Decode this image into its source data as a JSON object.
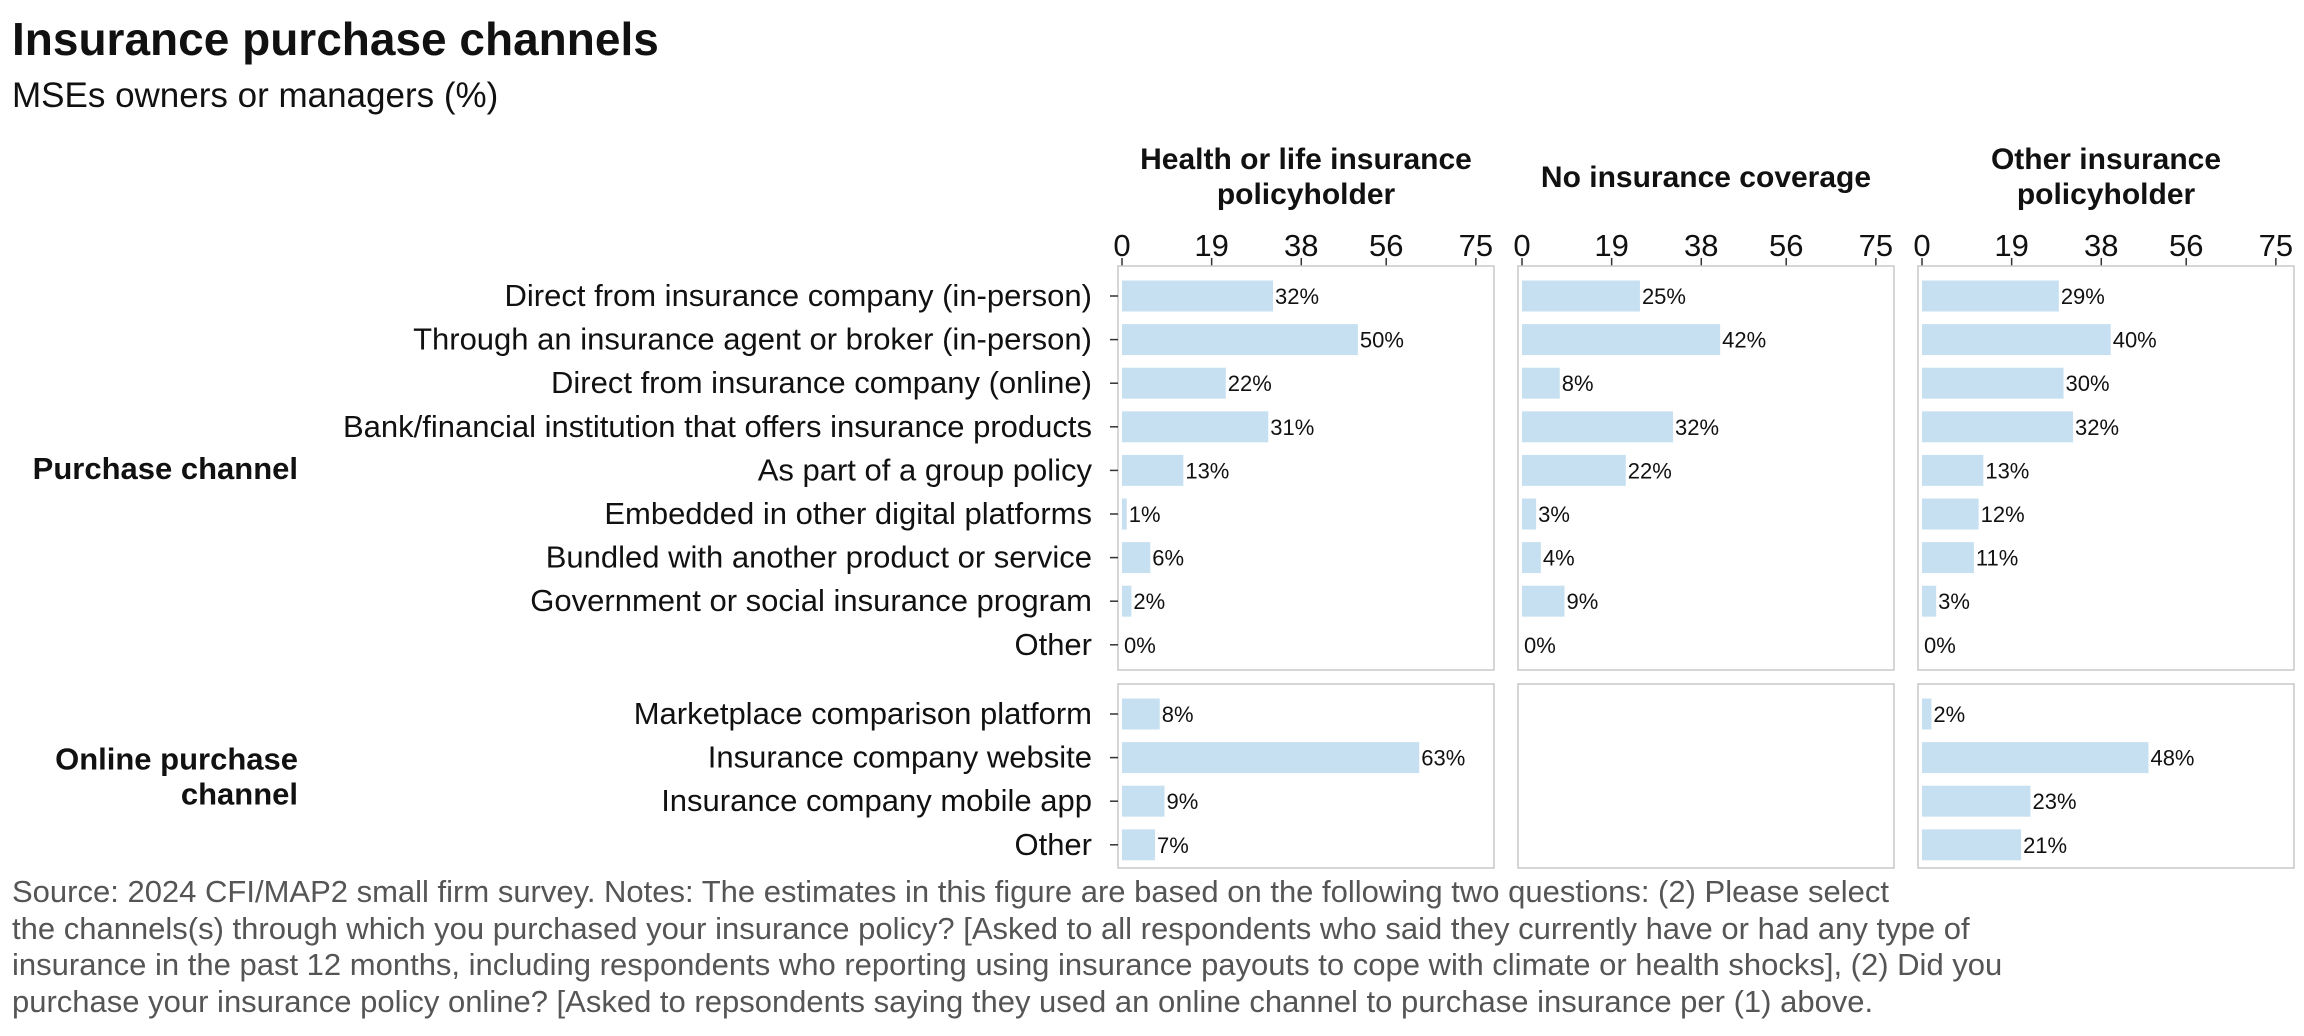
{
  "title": "Insurance purchase channels",
  "subtitle": "MSEs owners or managers (%)",
  "caption": [
    "Source: 2024 CFI/MAP2 small firm survey. Notes: The estimates in this figure are based on the following two questions: (2) Please select",
    "the channels(s) through which you purchased your insurance policy? [Asked to all respondents who said they currently have or had any type of",
    "insurance in the past 12 months, including respondents who reporting using insurance payouts to cope with climate or health shocks], (2) Did you",
    "purchase your insurance policy online? [Asked to repsondents saying they used an online channel to purchase insurance per (1) above."
  ],
  "chart_data": {
    "type": "bar",
    "orientation": "horizontal",
    "bar_color": "#c6e0f1",
    "xlim": [
      0,
      78
    ],
    "ticks": [
      0,
      19,
      38,
      56,
      75
    ],
    "tick_labels": [
      "0",
      "19",
      "38",
      "56",
      "75"
    ],
    "panels": [
      {
        "name": "Health or life insurance policyholder",
        "title_lines": [
          "Health or life insurance",
          "policyholder"
        ]
      },
      {
        "name": "No insurance coverage",
        "title_lines": [
          "No insurance coverage"
        ]
      },
      {
        "name": "Other insurance policyholder",
        "title_lines": [
          "Other insurance",
          "policyholder"
        ]
      }
    ],
    "groups": [
      {
        "name": "Purchase channel",
        "label_lines": [
          "Purchase channel"
        ],
        "categories": [
          "Direct from insurance company (in-person)",
          "Through an insurance agent or broker (in-person)",
          "Direct from insurance company (online)",
          "Bank/financial institution that offers insurance products",
          "As part of a group policy",
          "Embedded in other digital platforms",
          "Bundled with another product or service",
          "Government or social insurance program",
          "Other"
        ],
        "values": [
          [
            32,
            50,
            22,
            31,
            13,
            1,
            6,
            2,
            0
          ],
          [
            25,
            42,
            8,
            32,
            22,
            3,
            4,
            9,
            0
          ],
          [
            29,
            40,
            30,
            32,
            13,
            12,
            11,
            3,
            0
          ]
        ],
        "labels": [
          [
            "32%",
            "50%",
            "22%",
            "31%",
            "13%",
            "1%",
            "6%",
            "2%",
            "0%"
          ],
          [
            "25%",
            "42%",
            "8%",
            "32%",
            "22%",
            "3%",
            "4%",
            "9%",
            "0%"
          ],
          [
            "29%",
            "40%",
            "30%",
            "32%",
            "13%",
            "12%",
            "11%",
            "3%",
            "0%"
          ]
        ]
      },
      {
        "name": "Online purchase channel",
        "label_lines": [
          "Online purchase",
          "channel"
        ],
        "categories": [
          "Marketplace comparison platform",
          "Insurance company website",
          "Insurance company mobile app",
          "Other"
        ],
        "values": [
          [
            8,
            63,
            9,
            7
          ],
          [
            null,
            null,
            null,
            null
          ],
          [
            2,
            48,
            23,
            21
          ]
        ],
        "labels": [
          [
            "8%",
            "63%",
            "9%",
            "7%"
          ],
          [
            null,
            null,
            null,
            null
          ],
          [
            "2%",
            "48%",
            "23%",
            "21%"
          ]
        ]
      }
    ]
  }
}
